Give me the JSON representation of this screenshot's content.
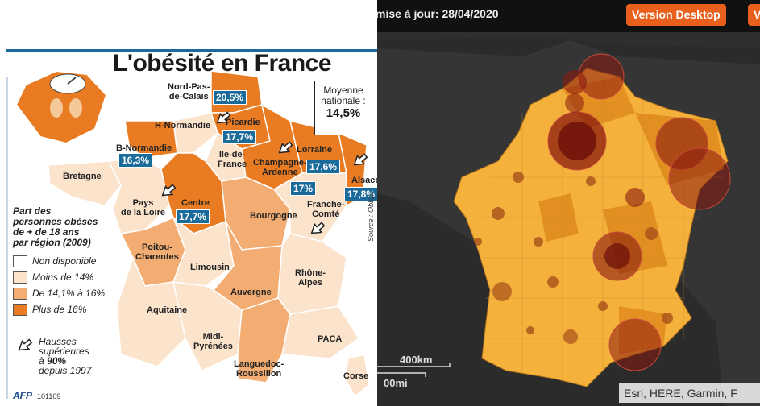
{
  "left_map": {
    "title": "L'obésité en France",
    "average": {
      "label": "Moyenne nationale :",
      "value": "14,5%"
    },
    "regions": [
      {
        "id": "nord",
        "name": "Nord-Pas-de-Calais",
        "line1": "Nord-Pas-",
        "line2": "de-Calais",
        "value": "20,5%"
      },
      {
        "id": "hnormandie",
        "name": "H-Normandie",
        "line1": "H-Normandie",
        "line2": ""
      },
      {
        "id": "picardie",
        "name": "Picardie",
        "line1": "Picardie",
        "line2": "",
        "value": "17,7%"
      },
      {
        "id": "bnormandie",
        "name": "B-Normandie",
        "line1": "B-Normandie",
        "line2": "",
        "value": "16,3%"
      },
      {
        "id": "idf",
        "name": "Ile-de-France",
        "line1": "Ile-de-",
        "line2": "France"
      },
      {
        "id": "champagne",
        "name": "Champagne-Ardenne",
        "line1": "Champagne-",
        "line2": "Ardenne",
        "value": "17%"
      },
      {
        "id": "lorraine",
        "name": "Lorraine",
        "line1": "Lorraine",
        "line2": "",
        "value": "17,6%"
      },
      {
        "id": "alsace",
        "name": "Alsace",
        "line1": "Alsace",
        "line2": "",
        "value": "17,8%"
      },
      {
        "id": "bretagne",
        "name": "Bretagne",
        "line1": "Bretagne",
        "line2": ""
      },
      {
        "id": "pdl",
        "name": "Pays de la Loire",
        "line1": "Pays",
        "line2": "de la Loire"
      },
      {
        "id": "centre",
        "name": "Centre",
        "line1": "Centre",
        "line2": "",
        "value": "17,7%"
      },
      {
        "id": "bourgogne",
        "name": "Bourgogne",
        "line1": "Bourgogne",
        "line2": ""
      },
      {
        "id": "franche",
        "name": "Franche-Comté",
        "line1": "Franche-",
        "line2": "Comté"
      },
      {
        "id": "poitou",
        "name": "Poitou-Charentes",
        "line1": "Poitou-",
        "line2": "Charentes"
      },
      {
        "id": "limousin",
        "name": "Limousin",
        "line1": "Limousin",
        "line2": ""
      },
      {
        "id": "rhone",
        "name": "Rhône-Alpes",
        "line1": "Rhône-",
        "line2": "Alpes"
      },
      {
        "id": "auvergne",
        "name": "Auvergne",
        "line1": "Auvergne",
        "line2": ""
      },
      {
        "id": "aquitaine",
        "name": "Aquitaine",
        "line1": "Aquitaine",
        "line2": ""
      },
      {
        "id": "midi",
        "name": "Midi-Pyrénées",
        "line1": "Midi-",
        "line2": "Pyrénées"
      },
      {
        "id": "paca",
        "name": "PACA",
        "line1": "PACA",
        "line2": ""
      },
      {
        "id": "languedoc",
        "name": "Languedoc-Roussillon",
        "line1": "Languedoc-",
        "line2": "Roussillon"
      },
      {
        "id": "corse",
        "name": "Corse",
        "line1": "Corse",
        "line2": ""
      }
    ],
    "legend": {
      "title_lines": [
        "Part des",
        "personnes obèses",
        "de + de 18 ans",
        "par région (2009)"
      ],
      "items": [
        {
          "label": "Non disponible",
          "color": "#ffffff"
        },
        {
          "label": "Moins de 14%",
          "color": "#fbe3cc"
        },
        {
          "label": "De 14,1% à 16%",
          "color": "#f3ad72"
        },
        {
          "label": "Plus de 16%",
          "color": "#e97c22"
        }
      ]
    },
    "hausses": {
      "lines": [
        "Hausses",
        "supérieures",
        "à"
      ],
      "bold": "90%",
      "end": "depuis 1997"
    },
    "source": "Source : ObEpi",
    "credit": "AFP",
    "credit_number": "101109"
  },
  "right_map": {
    "update_text": "mise à jour: 28/04/2020",
    "buttons": [
      {
        "label": "Version Desktop"
      },
      {
        "label": "V"
      }
    ],
    "scale_km": "400km",
    "scale_mi": "00mi",
    "attribution": "Esri, HERE, Garmin, F"
  },
  "colors": {
    "accent": "#e8601c",
    "pct_badge": "#1a6a9a",
    "dark_bg": "#262626",
    "france_fill": "#f4b23c",
    "bubble": "#8b1a0e"
  }
}
